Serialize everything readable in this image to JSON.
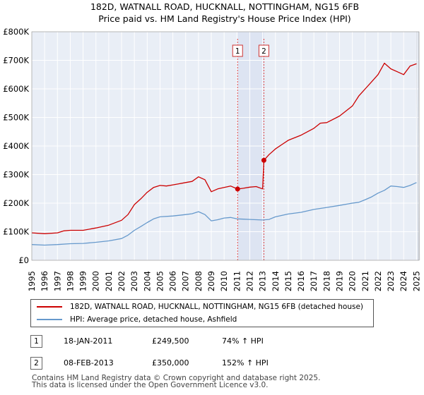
{
  "chart_data": {
    "type": "line",
    "title": "182D, WATNALL ROAD, HUCKNALL, NOTTINGHAM, NG15 6FB",
    "subtitle": "Price paid vs. HM Land Registry's House Price Index (HPI)",
    "xlim": [
      1995,
      2025.2
    ],
    "ylim": [
      0,
      800000
    ],
    "x_ticks": [
      1995,
      1996,
      1997,
      1998,
      1999,
      2000,
      2001,
      2002,
      2003,
      2004,
      2005,
      2006,
      2007,
      2008,
      2009,
      2010,
      2011,
      2012,
      2013,
      2014,
      2015,
      2016,
      2017,
      2018,
      2019,
      2020,
      2021,
      2022,
      2023,
      2024,
      2025
    ],
    "y_ticks": [
      {
        "value": 0,
        "label": "£0"
      },
      {
        "value": 100000,
        "label": "£100K"
      },
      {
        "value": 200000,
        "label": "£200K"
      },
      {
        "value": 300000,
        "label": "£300K"
      },
      {
        "value": 400000,
        "label": "£400K"
      },
      {
        "value": 500000,
        "label": "£500K"
      },
      {
        "value": 600000,
        "label": "£600K"
      },
      {
        "value": 700000,
        "label": "£700K"
      },
      {
        "value": 800000,
        "label": "£800K"
      }
    ],
    "grid": true,
    "series": [
      {
        "name": "182D, WATNALL ROAD, HUCKNALL, NOTTINGHAM, NG15 6FB (detached house)",
        "color": "#cc0000",
        "x": [
          1995,
          1996,
          1997,
          1997.5,
          1998,
          1999,
          2000,
          2000.5,
          2001,
          2002,
          2002.5,
          2003,
          2003.5,
          2004,
          2004.5,
          2005,
          2005.5,
          2006,
          2006.5,
          2007,
          2007.5,
          2008,
          2008.5,
          2009,
          2009.5,
          2010,
          2010.5,
          2011.05,
          2011.5,
          2012,
          2012.5,
          2013.0,
          2013.1,
          2013.5,
          2014,
          2014.5,
          2015,
          2016,
          2017,
          2017.5,
          2018,
          2019,
          2020,
          2020.5,
          2021,
          2021.5,
          2022,
          2022.5,
          2023,
          2023.5,
          2024,
          2024.5,
          2025
        ],
        "values": [
          96000,
          93000,
          96000,
          103000,
          105000,
          105000,
          113000,
          118000,
          123000,
          140000,
          160000,
          195000,
          215000,
          238000,
          255000,
          262000,
          260000,
          264000,
          268000,
          272000,
          276000,
          292000,
          282000,
          240000,
          250000,
          255000,
          260000,
          249500,
          252000,
          256000,
          258000,
          250000,
          350000,
          370000,
          390000,
          405000,
          420000,
          438000,
          462000,
          480000,
          482000,
          505000,
          540000,
          575000,
          600000,
          625000,
          650000,
          690000,
          670000,
          660000,
          650000,
          680000,
          688000
        ]
      },
      {
        "name": "HPI: Average price, detached house, Ashfield",
        "color": "#6699cc",
        "x": [
          1995,
          1996,
          1997,
          1998,
          1999,
          2000,
          2001,
          2002,
          2002.5,
          2003,
          2003.5,
          2004,
          2004.5,
          2005,
          2006,
          2007,
          2007.5,
          2008,
          2008.5,
          2009,
          2009.5,
          2010,
          2010.5,
          2011,
          2011.5,
          2012,
          2012.5,
          2013,
          2013.5,
          2014,
          2015,
          2016,
          2017,
          2018,
          2019,
          2020,
          2020.5,
          2021,
          2021.5,
          2022,
          2022.5,
          2023,
          2023.5,
          2024,
          2024.5,
          2025
        ],
        "values": [
          55000,
          53000,
          55000,
          58000,
          59000,
          63000,
          68000,
          76000,
          88000,
          105000,
          118000,
          132000,
          145000,
          152000,
          155000,
          160000,
          163000,
          170000,
          160000,
          138000,
          142000,
          148000,
          150000,
          145000,
          144000,
          143000,
          142000,
          141000,
          143000,
          152000,
          162000,
          168000,
          178000,
          185000,
          192000,
          200000,
          203000,
          212000,
          222000,
          235000,
          245000,
          260000,
          258000,
          255000,
          262000,
          272000
        ]
      }
    ],
    "annotations": [
      {
        "label": "1",
        "x": 2011.05,
        "y": 249500
      },
      {
        "label": "2",
        "x": 2013.1,
        "y": 350000
      }
    ],
    "shade_range": [
      2011.05,
      2013.1
    ]
  },
  "legend": {
    "items": [
      {
        "label": "182D, WATNALL ROAD, HUCKNALL, NOTTINGHAM, NG15 6FB (detached house)",
        "color": "#cc0000"
      },
      {
        "label": "HPI: Average price, detached house, Ashfield",
        "color": "#6699cc"
      }
    ]
  },
  "transactions": [
    {
      "num": "1",
      "date": "18-JAN-2011",
      "price": "£249,500",
      "hpi": "74% ↑ HPI"
    },
    {
      "num": "2",
      "date": "08-FEB-2013",
      "price": "£350,000",
      "hpi": "152% ↑ HPI"
    }
  ],
  "footer": {
    "line1": "Contains HM Land Registry data © Crown copyright and database right 2025.",
    "line2": "This data is licensed under the Open Government Licence v3.0."
  }
}
